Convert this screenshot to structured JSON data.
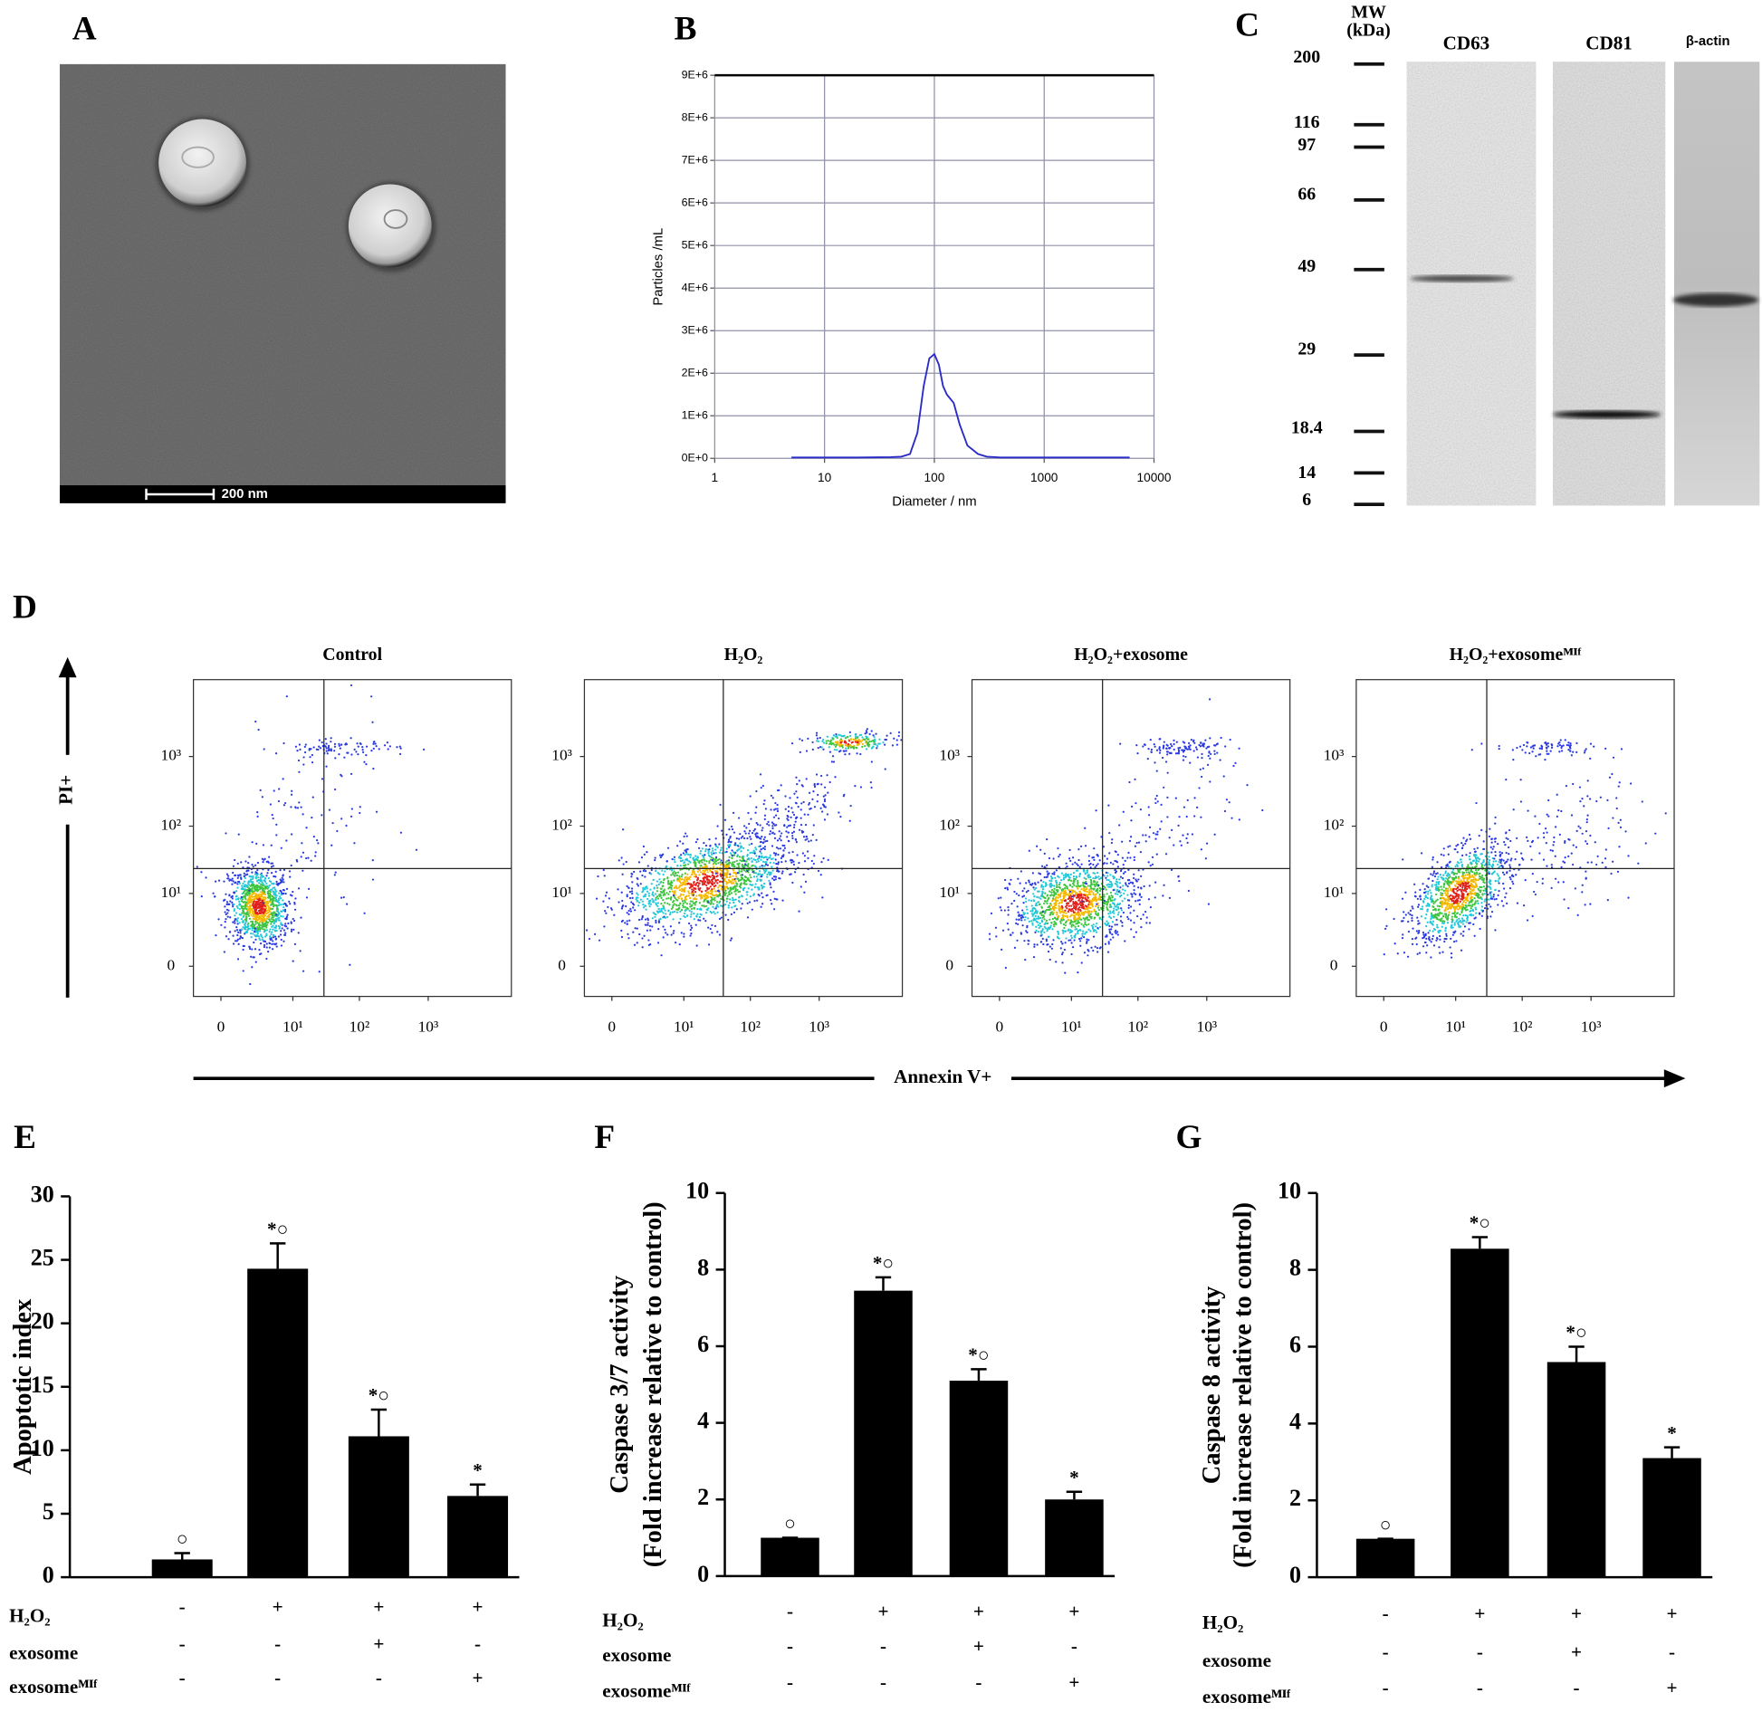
{
  "chart_data": [
    {
      "type": "image",
      "label": "A",
      "scale_bar": "200 nm"
    },
    {
      "type": "line",
      "label": "B",
      "xlabel": "Diameter / nm",
      "ylabel": "Particles /mL",
      "xscale": "log",
      "grid": true,
      "color": "#2a2ac8",
      "xlim": [
        1,
        10000
      ],
      "xticks": [
        1,
        10,
        100,
        1000,
        10000
      ],
      "ylim": [
        0,
        9000000
      ],
      "yticks": [
        {
          "value": 0,
          "label": "0E+0"
        },
        {
          "value": 1000000,
          "label": "1E+6"
        },
        {
          "value": 2000000,
          "label": "2E+6"
        },
        {
          "value": 3000000,
          "label": "3E+6"
        },
        {
          "value": 4000000,
          "label": "4E+6"
        },
        {
          "value": 5000000,
          "label": "5E+6"
        },
        {
          "value": 6000000,
          "label": "6E+6"
        },
        {
          "value": 7000000,
          "label": "7E+6"
        },
        {
          "value": 8000000,
          "label": "8E+6"
        },
        {
          "value": 9000000,
          "label": "9E+6"
        }
      ],
      "x": [
        5,
        20,
        40,
        50,
        60,
        70,
        80,
        90,
        100,
        110,
        120,
        130,
        150,
        170,
        200,
        250,
        300,
        400,
        1000,
        6000
      ],
      "values": [
        20000,
        20000,
        30000,
        40000,
        100000,
        600000,
        1700000,
        2350000,
        2450000,
        2200000,
        1700000,
        1500000,
        1300000,
        800000,
        300000,
        100000,
        40000,
        20000,
        20000,
        20000
      ]
    },
    {
      "type": "blot",
      "label": "C",
      "mw_title": [
        "MW",
        "(kDa)"
      ],
      "markers": [
        200,
        116,
        97,
        66,
        49,
        29,
        18.4,
        14,
        6
      ],
      "lanes": [
        "CD63",
        "CD81",
        "β-actin"
      ]
    },
    {
      "type": "flow",
      "label": "D",
      "ylabel": "PI+",
      "xlabel": "Annexin V+",
      "xscale": "biexponential",
      "yscale": "biexponential",
      "xlim": [
        -1.5,
        16000
      ],
      "ylim": [
        -1.7,
        12600
      ],
      "xticks": [
        0,
        {
          "value": 10,
          "label": "10¹"
        },
        {
          "value": 100,
          "label": "10²"
        },
        {
          "value": 1000,
          "label": "10³"
        }
      ],
      "yticks": [
        0,
        {
          "value": 10,
          "label": "10¹"
        },
        {
          "value": 100,
          "label": "10²"
        },
        {
          "value": 1000,
          "label": "10³"
        }
      ],
      "plots": [
        {
          "title": "Control",
          "gate": {
            "x": 30,
            "y": 24
          }
        },
        {
          "title": "H₂O₂",
          "gate": {
            "x": 40,
            "y": 24
          }
        },
        {
          "title": "H₂O₂+exosome",
          "gate": {
            "x": 30,
            "y": 24
          }
        },
        {
          "title": "H₂O₂+exosomeᴹᴵᶠ",
          "gate": {
            "x": 30,
            "y": 24
          }
        }
      ]
    },
    {
      "type": "bar",
      "label": "E",
      "ylabel": [
        "Apoptotic index"
      ],
      "color": "#000000",
      "ylim": [
        0,
        30
      ],
      "yticks": [
        0,
        5,
        10,
        15,
        20,
        25,
        30
      ],
      "values": [
        1.4,
        24.3,
        11.1,
        6.4
      ],
      "errors": [
        0.5,
        2.0,
        2.1,
        0.9
      ],
      "annotations": [
        "○",
        "*○",
        "*○",
        "*"
      ],
      "rows": [
        {
          "name": "H₂O₂",
          "values": [
            "-",
            "+",
            "+",
            "+"
          ]
        },
        {
          "name": "exosome",
          "values": [
            "-",
            "-",
            "+",
            "-"
          ]
        },
        {
          "name": "exosomeᴹᴵᶠ",
          "values": [
            "-",
            "-",
            "-",
            "+"
          ]
        }
      ]
    },
    {
      "type": "bar",
      "label": "F",
      "ylabel": [
        "Caspase 3/7 activity",
        "(Fold increase relative to control)"
      ],
      "color": "#000000",
      "ylim": [
        0,
        10
      ],
      "yticks": [
        0,
        2,
        4,
        6,
        8,
        10
      ],
      "values": [
        1.0,
        7.45,
        5.1,
        2.0
      ],
      "errors": [
        0,
        0.35,
        0.3,
        0.2
      ],
      "annotations": [
        "○",
        "*○",
        "*○",
        "*"
      ],
      "rows": [
        {
          "name": "H₂O₂",
          "values": [
            "-",
            "+",
            "+",
            "+"
          ]
        },
        {
          "name": "exosome",
          "values": [
            "-",
            "-",
            "+",
            "-"
          ]
        },
        {
          "name": "exosomeᴹᴵᶠ",
          "values": [
            "-",
            "-",
            "-",
            "+"
          ]
        }
      ]
    },
    {
      "type": "bar",
      "label": "G",
      "ylabel": [
        "Caspase 8 activity",
        "(Fold increase relative to control)"
      ],
      "color": "#000000",
      "ylim": [
        0,
        10
      ],
      "yticks": [
        0,
        2,
        4,
        6,
        8,
        10
      ],
      "values": [
        1.0,
        8.55,
        5.6,
        3.1
      ],
      "errors": [
        0,
        0.3,
        0.4,
        0.28
      ],
      "annotations": [
        "○",
        "*○",
        "*○",
        "*"
      ],
      "rows": [
        {
          "name": "H₂O₂",
          "values": [
            "-",
            "+",
            "+",
            "+"
          ]
        },
        {
          "name": "exosome",
          "values": [
            "-",
            "-",
            "+",
            "-"
          ]
        },
        {
          "name": "exosomeᴹᴵᶠ",
          "values": [
            "-",
            "-",
            "-",
            "+"
          ]
        }
      ]
    }
  ]
}
